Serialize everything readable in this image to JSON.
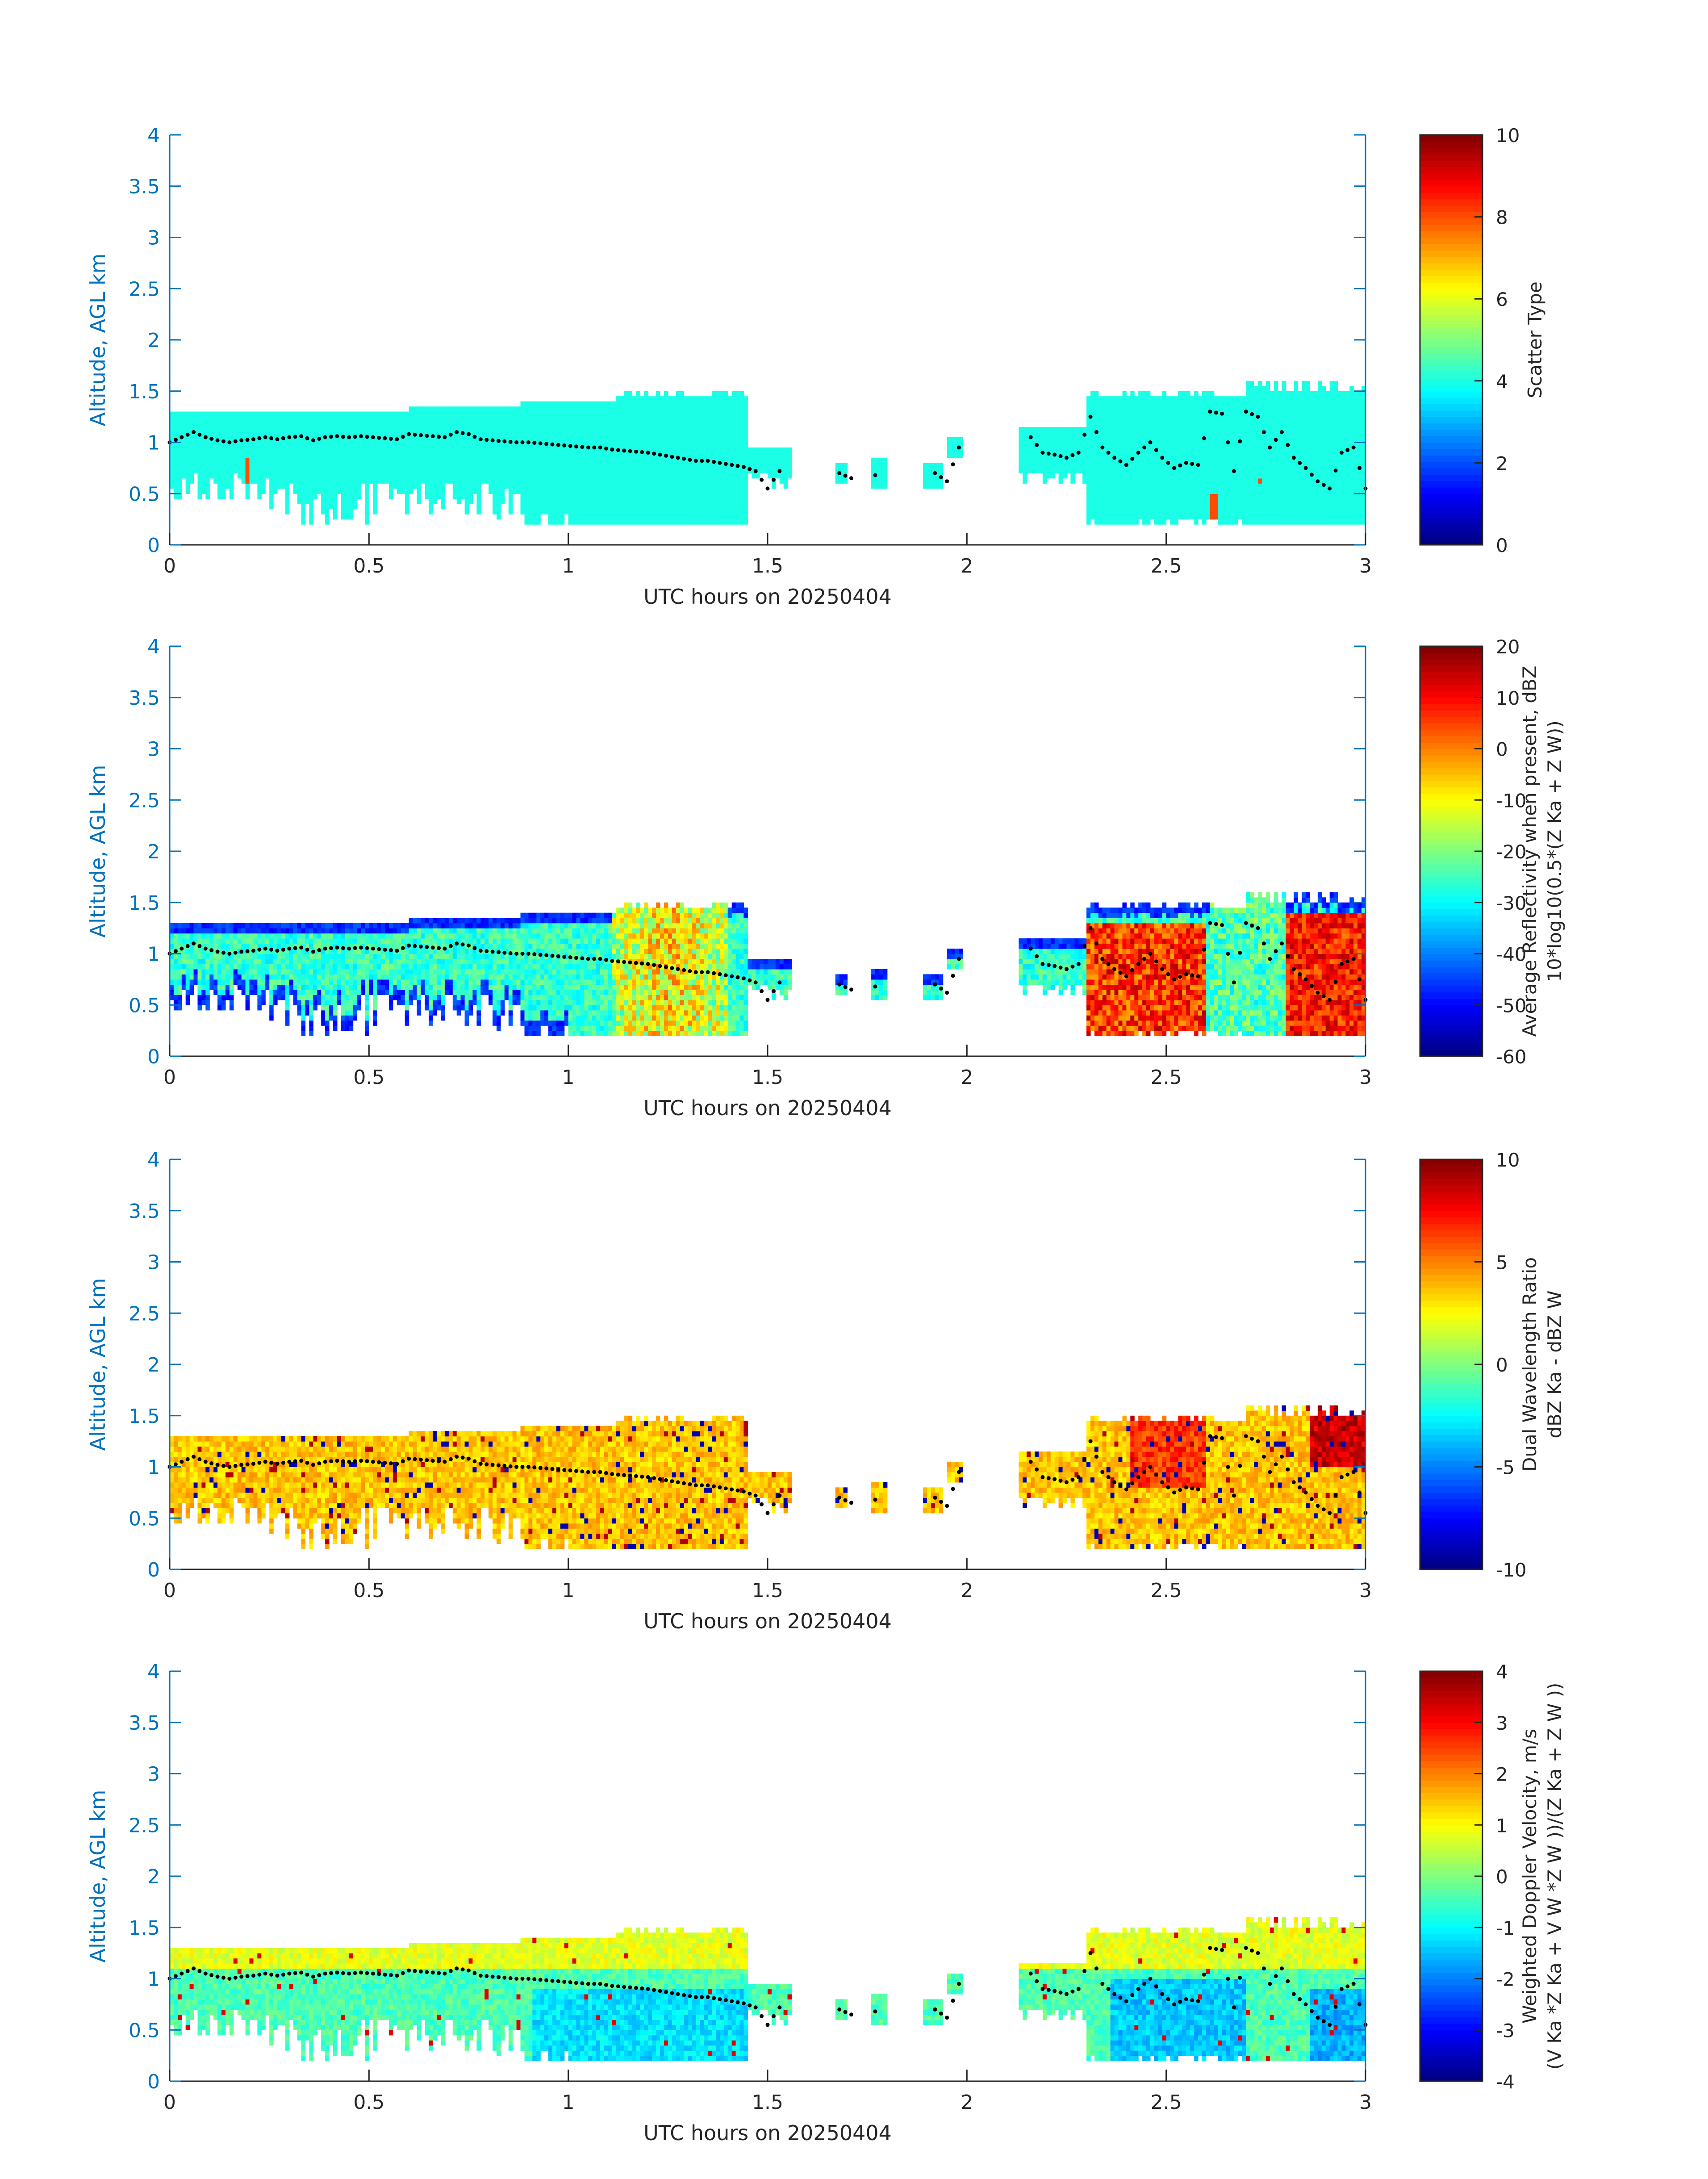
{
  "colors": {
    "axis_blue": "#0072BD",
    "text_dark": "#262626",
    "background": "#ffffff",
    "top_dot": "#000000"
  },
  "colormap": "jet",
  "chart_data": [
    {
      "type": "heatmap",
      "xlabel": "UTC hours on 20250404",
      "ylabel": "Altitude, AGL km",
      "xlim": [
        0,
        3
      ],
      "ylim": [
        0,
        4
      ],
      "xticks": [
        "0",
        "0.5",
        "1",
        "1.5",
        "2",
        "2.5",
        "3"
      ],
      "yticks": [
        "0",
        "0.5",
        "1",
        "1.5",
        "2",
        "2.5",
        "3",
        "3.5",
        "4"
      ],
      "colorbar": {
        "label_lines": [
          "Scatter Type"
        ],
        "clim": [
          0,
          10
        ],
        "ticks": [
          "0",
          "2",
          "4",
          "6",
          "8",
          "10"
        ]
      },
      "field": "scatter_type",
      "description_values": {
        "dominant_value": 4,
        "secondary_value": 8
      }
    },
    {
      "type": "heatmap",
      "xlabel": "UTC hours on 20250404",
      "ylabel": "Altitude, AGL km",
      "xlim": [
        0,
        3
      ],
      "ylim": [
        0,
        4
      ],
      "xticks": [
        "0",
        "0.5",
        "1",
        "1.5",
        "2",
        "2.5",
        "3"
      ],
      "yticks": [
        "0",
        "0.5",
        "1",
        "1.5",
        "2",
        "2.5",
        "3",
        "3.5",
        "4"
      ],
      "colorbar": {
        "label_lines": [
          "Average Reflectivity when present, dBZ",
          "10*log10(0.5*(Z Ka + Z W))"
        ],
        "clim": [
          -60,
          20
        ],
        "ticks": [
          "-60",
          "-50",
          "-40",
          "-30",
          "-20",
          "-10",
          "0",
          "10",
          "20"
        ]
      },
      "field": "reflectivity"
    },
    {
      "type": "heatmap",
      "xlabel": "UTC hours on 20250404",
      "ylabel": "Altitude, AGL km",
      "xlim": [
        0,
        3
      ],
      "ylim": [
        0,
        4
      ],
      "xticks": [
        "0",
        "0.5",
        "1",
        "1.5",
        "2",
        "2.5",
        "3"
      ],
      "yticks": [
        "0",
        "0.5",
        "1",
        "1.5",
        "2",
        "2.5",
        "3",
        "3.5",
        "4"
      ],
      "colorbar": {
        "label_lines": [
          "Dual Wavelength Ratio",
          "dBZ Ka - dBZ W"
        ],
        "clim": [
          -10,
          10
        ],
        "ticks": [
          "-10",
          "-5",
          "0",
          "5",
          "10"
        ]
      },
      "field": "dwr"
    },
    {
      "type": "heatmap",
      "xlabel": "UTC hours on 20250404",
      "ylabel": "Altitude, AGL km",
      "xlim": [
        0,
        3
      ],
      "ylim": [
        0,
        4
      ],
      "xticks": [
        "0",
        "0.5",
        "1",
        "1.5",
        "2",
        "2.5",
        "3"
      ],
      "yticks": [
        "0",
        "0.5",
        "1",
        "1.5",
        "2",
        "2.5",
        "3",
        "3.5",
        "4"
      ],
      "colorbar": {
        "label_lines": [
          "Weighted Doppler Velocity, m/s",
          "(V Ka *Z Ka + V W *Z W ))/(Z Ka + Z W ))"
        ],
        "clim": [
          -4,
          4
        ],
        "ticks": [
          "-4",
          "-3",
          "-2",
          "-1",
          "0",
          "1",
          "2",
          "3",
          "4"
        ]
      },
      "field": "velocity"
    }
  ],
  "cloud_top_series": {
    "name": "",
    "x": [
      0.0,
      0.03,
      0.06,
      0.09,
      0.12,
      0.15,
      0.18,
      0.21,
      0.24,
      0.27,
      0.3,
      0.33,
      0.36,
      0.39,
      0.42,
      0.45,
      0.48,
      0.51,
      0.54,
      0.57,
      0.6,
      0.63,
      0.66,
      0.69,
      0.72,
      0.75,
      0.78,
      0.81,
      0.84,
      0.87,
      0.9,
      0.93,
      0.96,
      0.99,
      1.02,
      1.05,
      1.08,
      1.11,
      1.14,
      1.17,
      1.2,
      1.23,
      1.26,
      1.29,
      1.32,
      1.35,
      1.38,
      1.41,
      1.44,
      1.47,
      1.5,
      1.53,
      1.68,
      1.71,
      1.77,
      1.92,
      1.95,
      1.98,
      2.16,
      2.19,
      2.22,
      2.25,
      2.28,
      2.31,
      2.34,
      2.37,
      2.4,
      2.43,
      2.46,
      2.49,
      2.52,
      2.55,
      2.58,
      2.61,
      2.64,
      2.67,
      2.7,
      2.73,
      2.76,
      2.79,
      2.82,
      2.85,
      2.88,
      2.91,
      2.94,
      2.97,
      3.0
    ],
    "y": [
      1.0,
      1.05,
      1.1,
      1.05,
      1.02,
      1.0,
      1.02,
      1.03,
      1.05,
      1.03,
      1.05,
      1.06,
      1.02,
      1.05,
      1.06,
      1.05,
      1.06,
      1.05,
      1.04,
      1.03,
      1.08,
      1.07,
      1.06,
      1.05,
      1.1,
      1.08,
      1.03,
      1.02,
      1.01,
      1.0,
      1.0,
      0.99,
      0.98,
      0.97,
      0.96,
      0.95,
      0.95,
      0.93,
      0.92,
      0.91,
      0.9,
      0.88,
      0.86,
      0.84,
      0.82,
      0.82,
      0.8,
      0.78,
      0.76,
      0.72,
      0.55,
      0.72,
      0.7,
      0.65,
      0.68,
      0.7,
      0.62,
      0.95,
      1.05,
      0.9,
      0.88,
      0.85,
      0.9,
      1.25,
      0.95,
      0.85,
      0.78,
      0.9,
      1.0,
      0.85,
      0.75,
      0.8,
      0.78,
      1.3,
      1.28,
      0.72,
      1.3,
      1.25,
      0.95,
      1.1,
      0.85,
      0.75,
      0.62,
      0.55,
      0.9,
      0.95,
      0.55
    ]
  }
}
